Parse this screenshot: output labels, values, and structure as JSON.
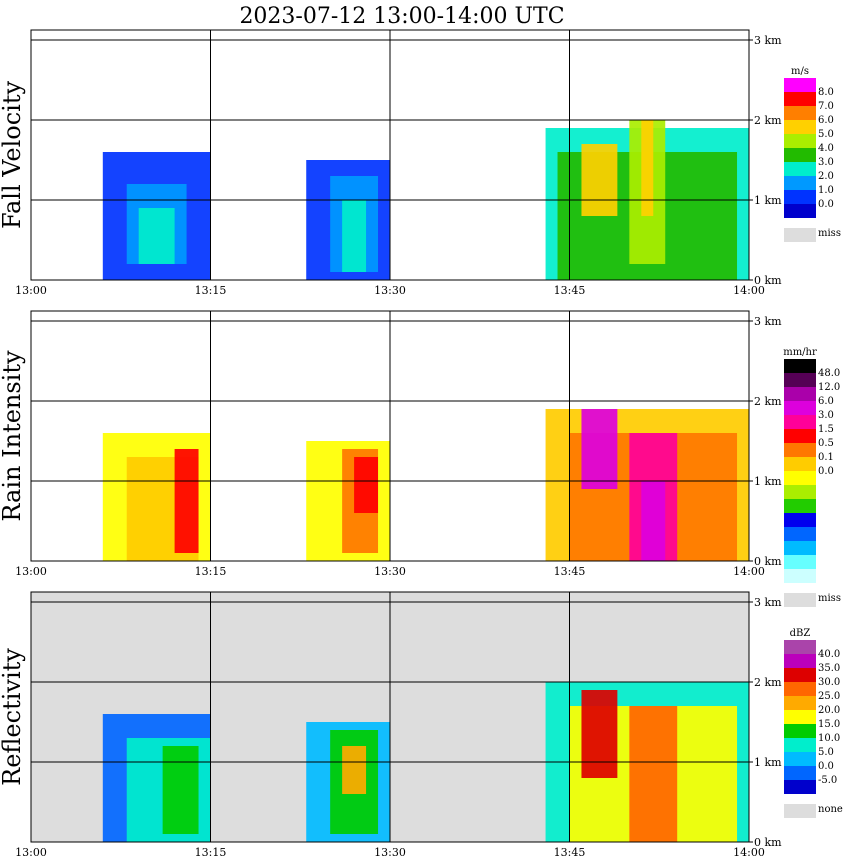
{
  "title": "2023-07-12  13:00-14:00 UTC",
  "chart_data": [
    {
      "type": "heatmap",
      "name": "Fall Velocity",
      "ylabel": "Fall Velocity",
      "x_ticks": [
        "13:00",
        "13:15",
        "13:30",
        "13:45",
        "14:00"
      ],
      "y_ticks": [
        "0 km",
        "1 km",
        "2 km",
        "3 km"
      ],
      "colorbar": {
        "unit": "m/s",
        "labels": [
          "8.0",
          "7.0",
          "6.0",
          "5.0",
          "4.0",
          "3.0",
          "2.0",
          "1.0",
          "0.0"
        ],
        "colors": [
          "#ff00ff",
          "#ff0000",
          "#ff7f00",
          "#ffd000",
          "#aaee00",
          "#22bb00",
          "#00eecc",
          "#0099ff",
          "#0033ff",
          "#0000cc"
        ],
        "missing_label": "miss",
        "missing_color": "#dddddd"
      },
      "background": "#ffffff",
      "cells": [
        {
          "x_min": 6,
          "x_max": 15,
          "h_min": 0.0,
          "h_max": 1.6,
          "value": "1.0-2.0"
        },
        {
          "x_min": 8,
          "x_max": 13,
          "h_min": 0.2,
          "h_max": 1.2,
          "value": "2.0-3.0"
        },
        {
          "x_min": 9,
          "x_max": 12,
          "h_min": 0.2,
          "h_max": 0.9,
          "value": "3.0-4.0"
        },
        {
          "x_min": 23,
          "x_max": 30,
          "h_min": 0.0,
          "h_max": 1.5,
          "value": "1.0-2.0"
        },
        {
          "x_min": 25,
          "x_max": 29,
          "h_min": 0.1,
          "h_max": 1.3,
          "value": "2.0-3.0"
        },
        {
          "x_min": 26,
          "x_max": 28,
          "h_min": 0.1,
          "h_max": 1.0,
          "value": "3.0-4.0"
        },
        {
          "x_min": 43,
          "x_max": 60,
          "h_min": 0.0,
          "h_max": 1.9,
          "value": "3.0-4.0"
        },
        {
          "x_min": 44,
          "x_max": 59,
          "h_min": 0.0,
          "h_max": 1.6,
          "value": "4.0-5.0"
        },
        {
          "x_min": 46,
          "x_max": 49,
          "h_min": 0.8,
          "h_max": 1.7,
          "value": "6.0-7.0"
        },
        {
          "x_min": 50,
          "x_max": 53,
          "h_min": 0.2,
          "h_max": 2.0,
          "value": "5.0-6.0"
        },
        {
          "x_min": 51,
          "x_max": 52,
          "h_min": 0.8,
          "h_max": 2.0,
          "value": "6.0-7.0"
        }
      ]
    },
    {
      "type": "heatmap",
      "name": "Rain Intensity",
      "ylabel": "Rain Intensity",
      "x_ticks": [
        "13:00",
        "13:15",
        "13:30",
        "13:45",
        "14:00"
      ],
      "y_ticks": [
        "0 km",
        "1 km",
        "2 km",
        "3 km"
      ],
      "colorbar": {
        "unit": "mm/hr",
        "labels": [
          "48.0",
          "12.0",
          "6.0",
          "3.0",
          "1.5",
          "0.5",
          "0.1",
          "0.0"
        ],
        "colors": [
          "#000000",
          "#550055",
          "#aa00aa",
          "#dd00dd",
          "#ff0099",
          "#ff0000",
          "#ff7700",
          "#ffcc00",
          "#ffff00",
          "#aaee00",
          "#22cc00",
          "#0000ee",
          "#0066ff",
          "#00bbff",
          "#66ffff",
          "#ccffff"
        ],
        "missing_label": "miss",
        "missing_color": "#dddddd"
      },
      "background": "#ffffff",
      "cells": [
        {
          "x_min": 6,
          "x_max": 15,
          "h_min": 0.0,
          "h_max": 1.6,
          "value": "0.0-0.1"
        },
        {
          "x_min": 8,
          "x_max": 14,
          "h_min": 0.0,
          "h_max": 1.3,
          "value": "0.1-0.5"
        },
        {
          "x_min": 12,
          "x_max": 14,
          "h_min": 0.1,
          "h_max": 1.4,
          "value": "1.5-3.0"
        },
        {
          "x_min": 23,
          "x_max": 30,
          "h_min": 0.0,
          "h_max": 1.5,
          "value": "0.0-0.1"
        },
        {
          "x_min": 26,
          "x_max": 29,
          "h_min": 0.1,
          "h_max": 1.4,
          "value": "0.5-1.5"
        },
        {
          "x_min": 27,
          "x_max": 29,
          "h_min": 0.6,
          "h_max": 1.3,
          "value": "1.5-3.0"
        },
        {
          "x_min": 43,
          "x_max": 60,
          "h_min": 0.0,
          "h_max": 1.9,
          "value": "0.1-0.5"
        },
        {
          "x_min": 45,
          "x_max": 59,
          "h_min": 0.0,
          "h_max": 1.6,
          "value": "0.5-1.5"
        },
        {
          "x_min": 46,
          "x_max": 49,
          "h_min": 0.9,
          "h_max": 1.9,
          "value": "6.0-12.0"
        },
        {
          "x_min": 50,
          "x_max": 54,
          "h_min": 0.0,
          "h_max": 1.6,
          "value": "3.0-6.0"
        },
        {
          "x_min": 51,
          "x_max": 53,
          "h_min": 0.0,
          "h_max": 1.0,
          "value": "6.0-12.0"
        }
      ]
    },
    {
      "type": "heatmap",
      "name": "Reflectivity",
      "ylabel": "Reflectivity",
      "x_ticks": [
        "13:00",
        "13:15",
        "13:30",
        "13:45",
        "14:00"
      ],
      "y_ticks": [
        "0 km",
        "1 km",
        "2 km",
        "3 km"
      ],
      "colorbar": {
        "unit": "dBZ",
        "labels": [
          "40.0",
          "35.0",
          "30.0",
          "25.0",
          "20.0",
          "15.0",
          "10.0",
          "5.0",
          "0.0",
          "-5.0"
        ],
        "colors": [
          "#aa44aa",
          "#bb00bb",
          "#dd0000",
          "#ff6600",
          "#ffaa00",
          "#ffff00",
          "#00cc00",
          "#00eecc",
          "#00bbff",
          "#0066ff",
          "#0000cc"
        ],
        "missing_label": "none",
        "missing_color": "#dddddd"
      },
      "background": "#dddddd",
      "cells": [
        {
          "x_min": 6,
          "x_max": 15,
          "h_min": 0.0,
          "h_max": 1.6,
          "value": "0.0-5.0"
        },
        {
          "x_min": 8,
          "x_max": 15,
          "h_min": 0.0,
          "h_max": 1.3,
          "value": "10.0-15.0"
        },
        {
          "x_min": 11,
          "x_max": 14,
          "h_min": 0.1,
          "h_max": 1.2,
          "value": "15.0-20.0"
        },
        {
          "x_min": 23,
          "x_max": 30,
          "h_min": 0.0,
          "h_max": 1.5,
          "value": "5.0-10.0"
        },
        {
          "x_min": 25,
          "x_max": 29,
          "h_min": 0.1,
          "h_max": 1.4,
          "value": "15.0-20.0"
        },
        {
          "x_min": 26,
          "x_max": 28,
          "h_min": 0.6,
          "h_max": 1.2,
          "value": "25.0-30.0"
        },
        {
          "x_min": 43,
          "x_max": 60,
          "h_min": 0.0,
          "h_max": 2.0,
          "value": "10.0-15.0"
        },
        {
          "x_min": 45,
          "x_max": 59,
          "h_min": 0.0,
          "h_max": 1.7,
          "value": "20.0-25.0"
        },
        {
          "x_min": 46,
          "x_max": 49,
          "h_min": 0.8,
          "h_max": 1.9,
          "value": "35.0-40.0"
        },
        {
          "x_min": 50,
          "x_max": 54,
          "h_min": 0.0,
          "h_max": 1.7,
          "value": "30.0-35.0"
        }
      ]
    }
  ]
}
